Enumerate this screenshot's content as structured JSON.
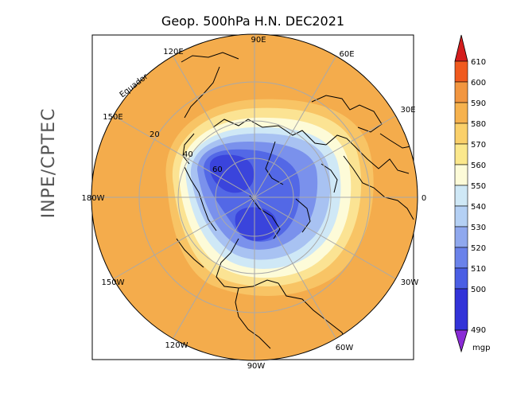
{
  "title": "Geop. 500hPa H.N. DEC2021",
  "side_label": "INPE/CPTEC",
  "equator_label": "Equador",
  "longitude_labels": [
    "90E",
    "60E",
    "30E",
    "0",
    "30W",
    "60W",
    "90W",
    "120W",
    "150W",
    "180W",
    "150E",
    "120E"
  ],
  "latitude_labels": [
    "20",
    "40",
    "60"
  ],
  "colorbar": {
    "levels": [
      "610",
      "600",
      "590",
      "580",
      "570",
      "560",
      "550",
      "540",
      "530",
      "520",
      "510",
      "500",
      "490"
    ],
    "unit": "mgp",
    "colors": {
      "over": "#d41d1d",
      "610_600": "#f05a1e",
      "600_590": "#f29640",
      "590_580": "#f6b24e",
      "580_570": "#fad06a",
      "570_560": "#fbe88c",
      "560_550": "#fdfbd8",
      "550_540": "#cfe8f6",
      "540_530": "#b4d0f4",
      "530_520": "#8fa8ee",
      "520_510": "#6a82ea",
      "510_500": "#4a5ee4",
      "500_490": "#3233d8",
      "under": "#8a2bd6"
    }
  },
  "field_colors": {
    "outer": "#f4ac4c",
    "ring_580": "#f8c465",
    "ring_570": "#fbe393",
    "ring_560": "#fdfbd8",
    "ring_550": "#cfe8f6",
    "ring_540": "#a8c2f2",
    "ring_520": "#7a91ec",
    "ring_510": "#5368e6",
    "core": "#3a44dc"
  }
}
